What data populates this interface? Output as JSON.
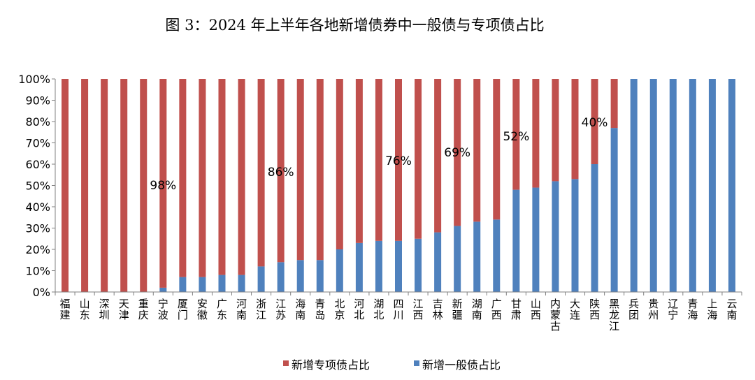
{
  "chart_data": {
    "type": "bar",
    "stacked": "percent",
    "title": "图 3：2024 年上半年各地新增债券中一般债与专项债占比",
    "categories": [
      "福建",
      "山东",
      "深圳",
      "天津",
      "重庆",
      "宁波",
      "厦门",
      "安徽",
      "广东",
      "河南",
      "浙江",
      "江苏",
      "海南",
      "青岛",
      "北京",
      "河北",
      "湖北",
      "四川",
      "江西",
      "吉林",
      "新疆",
      "湖南",
      "广西",
      "甘肃",
      "山西",
      "内蒙古",
      "大连",
      "陕西",
      "黑龙江",
      "兵团",
      "贵州",
      "辽宁",
      "青海",
      "上海",
      "云南"
    ],
    "series": [
      {
        "name": "新增专项债占比",
        "color": "#c0504d",
        "values": [
          100,
          100,
          100,
          100,
          100,
          98,
          93,
          93,
          92,
          92,
          88,
          86,
          85,
          85,
          80,
          77,
          76,
          76,
          75,
          72,
          69,
          67,
          66,
          52,
          51,
          48,
          47,
          40,
          23,
          0,
          0,
          0,
          0,
          0,
          0
        ]
      },
      {
        "name": "新增一般债占比",
        "color": "#4f81bd",
        "values": [
          0,
          0,
          0,
          0,
          0,
          2,
          7,
          7,
          8,
          8,
          12,
          14,
          15,
          15,
          20,
          23,
          24,
          24,
          25,
          28,
          31,
          33,
          34,
          48,
          49,
          52,
          53,
          60,
          77,
          100,
          100,
          100,
          100,
          100,
          100
        ]
      }
    ],
    "annotations": [
      {
        "category": "宁波",
        "text": "98%"
      },
      {
        "category": "江苏",
        "text": "86%"
      },
      {
        "category": "四川",
        "text": "76%"
      },
      {
        "category": "新疆",
        "text": "69%"
      },
      {
        "category": "甘肃",
        "text": "52%"
      },
      {
        "category": "陕西",
        "text": "40%"
      }
    ],
    "y_ticks": [
      "0%",
      "10%",
      "20%",
      "30%",
      "40%",
      "50%",
      "60%",
      "70%",
      "80%",
      "90%",
      "100%"
    ],
    "ylim": [
      0,
      100
    ],
    "grid": false,
    "legend_position": "bottom"
  }
}
